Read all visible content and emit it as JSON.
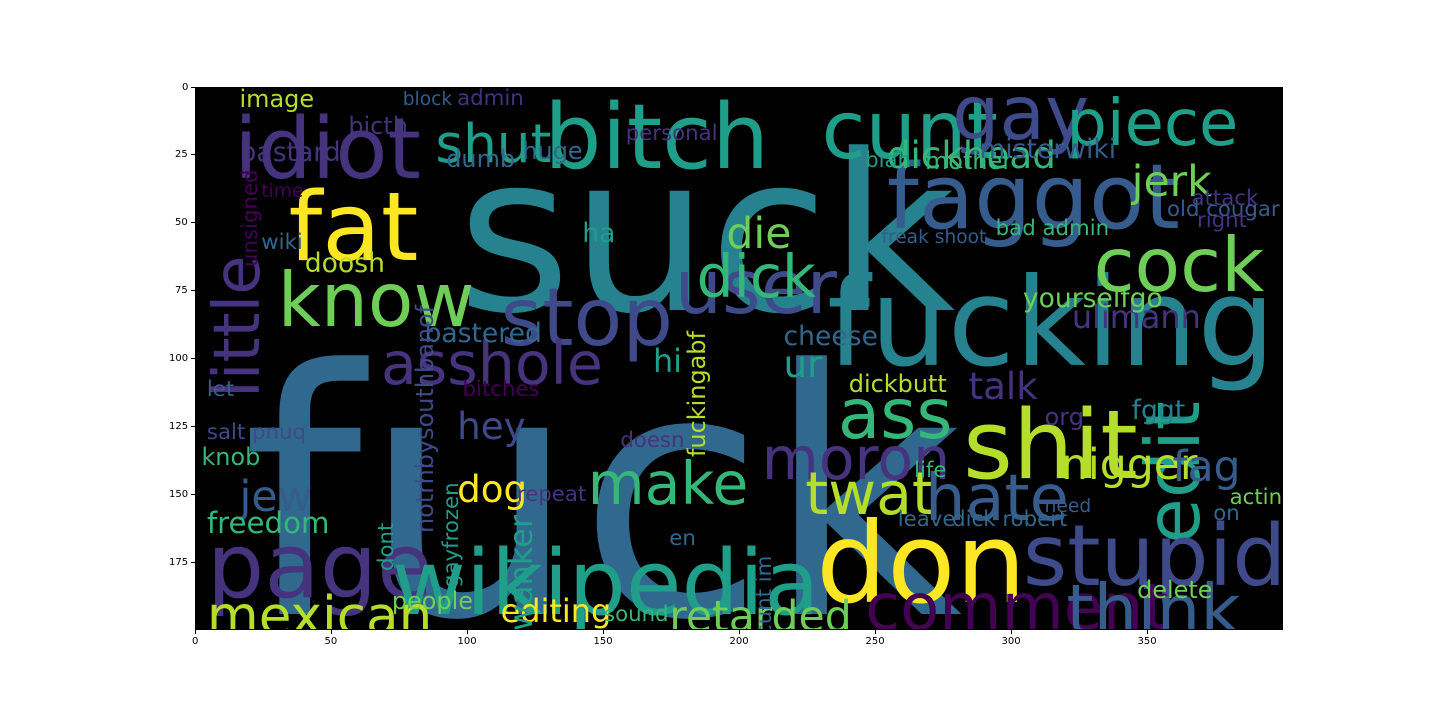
{
  "axes": {
    "x_ticks": [
      "0",
      "50",
      "100",
      "150",
      "200",
      "250",
      "300",
      "350"
    ],
    "y_ticks": [
      "0",
      "25",
      "50",
      "75",
      "100",
      "125",
      "150",
      "175"
    ],
    "x_tick_values": [
      0,
      50,
      100,
      150,
      200,
      250,
      300,
      350
    ],
    "y_tick_values": [
      0,
      25,
      50,
      75,
      100,
      125,
      150,
      175
    ],
    "xlim": [
      0,
      400
    ],
    "ylim": [
      0,
      200
    ]
  },
  "colors": {
    "background": "#000000",
    "purple": "#46337e",
    "deep_purple": "#440154",
    "indigo": "#3e4a89",
    "blue": "#365c8d",
    "steel": "#31688e",
    "teal": "#26828e",
    "cyan": "#1f9e89",
    "green": "#35b779",
    "lime": "#6ece58",
    "yellowgreen": "#b5de2b",
    "yellow": "#fde725"
  },
  "words": [
    {
      "text": "fuck",
      "x": 17,
      "y": 88,
      "size": 128,
      "color": "#31688e"
    },
    {
      "text": "suck",
      "x": 96,
      "y": 14,
      "size": 82,
      "color": "#26828e"
    },
    {
      "text": "fucking",
      "x": 232,
      "y": 64,
      "size": 46,
      "color": "#26828e"
    },
    {
      "text": "bitch",
      "x": 128,
      "y": 2,
      "size": 34,
      "color": "#1f9e89"
    },
    {
      "text": "faggot",
      "x": 254,
      "y": 24,
      "size": 34,
      "color": "#365c8d"
    },
    {
      "text": "cunt",
      "x": 230,
      "y": 1,
      "size": 30,
      "color": "#1f9e89"
    },
    {
      "text": "gay",
      "x": 278,
      "y": -4,
      "size": 28,
      "color": "#3e4a89"
    },
    {
      "text": "idiot",
      "x": 14,
      "y": 7,
      "size": 32,
      "color": "#46337e"
    },
    {
      "text": "fat",
      "x": 34,
      "y": 34,
      "size": 36,
      "color": "#fde725"
    },
    {
      "text": "know",
      "x": 30,
      "y": 65,
      "size": 28,
      "color": "#6ece58"
    },
    {
      "text": "stop",
      "x": 112,
      "y": 70,
      "size": 30,
      "color": "#3e4a89"
    },
    {
      "text": "user",
      "x": 176,
      "y": 60,
      "size": 28,
      "color": "#3e4a89"
    },
    {
      "text": "shut",
      "x": 88,
      "y": 11,
      "size": 20,
      "color": "#1f9e89"
    },
    {
      "text": "piece",
      "x": 320,
      "y": 2,
      "size": 24,
      "color": "#1f9e89"
    },
    {
      "text": "cock",
      "x": 330,
      "y": 52,
      "size": 28,
      "color": "#6ece58"
    },
    {
      "text": "dick",
      "x": 184,
      "y": 59,
      "size": 22,
      "color": "#35b779"
    },
    {
      "text": "little",
      "x": 4,
      "y": 40,
      "size": 24,
      "color": "#46337e",
      "rotate": -90,
      "rw": 74
    },
    {
      "text": "asshole",
      "x": 68,
      "y": 91,
      "size": 22,
      "color": "#46337e"
    },
    {
      "text": "ass",
      "x": 236,
      "y": 108,
      "size": 26,
      "color": "#35b779"
    },
    {
      "text": "shit",
      "x": 282,
      "y": 114,
      "size": 36,
      "color": "#b5de2b"
    },
    {
      "text": "moron",
      "x": 208,
      "y": 126,
      "size": 22,
      "color": "#46337e"
    },
    {
      "text": "make",
      "x": 144,
      "y": 135,
      "size": 22,
      "color": "#35b779"
    },
    {
      "text": "twat",
      "x": 224,
      "y": 139,
      "size": 22,
      "color": "#b5de2b"
    },
    {
      "text": "hate",
      "x": 268,
      "y": 140,
      "size": 24,
      "color": "#365c8d"
    },
    {
      "text": "edit",
      "x": 346,
      "y": 106,
      "size": 28,
      "color": "#1f9e89",
      "rotate": -90,
      "rw": 62
    },
    {
      "text": "page",
      "x": 4,
      "y": 160,
      "size": 34,
      "color": "#46337e"
    },
    {
      "text": "wikipedia",
      "x": 72,
      "y": 166,
      "size": 34,
      "color": "#1f9e89"
    },
    {
      "text": "don",
      "x": 228,
      "y": 155,
      "size": 42,
      "color": "#fde725"
    },
    {
      "text": "stupid",
      "x": 304,
      "y": 157,
      "size": 32,
      "color": "#3e4a89"
    },
    {
      "text": "mexican",
      "x": 4,
      "y": 185,
      "size": 20,
      "color": "#b5de2b"
    },
    {
      "text": "comment",
      "x": 246,
      "y": 180,
      "size": 24,
      "color": "#440154"
    },
    {
      "text": "think",
      "x": 320,
      "y": 180,
      "size": 26,
      "color": "#365c8d"
    },
    {
      "text": "retarded",
      "x": 174,
      "y": 187,
      "size": 16,
      "color": "#6ece58"
    },
    {
      "text": "editing",
      "x": 112,
      "y": 187,
      "size": 12,
      "color": "#fde725"
    },
    {
      "text": "dickhead",
      "x": 254,
      "y": 18,
      "size": 14,
      "color": "#35b779"
    },
    {
      "text": "jerk",
      "x": 344,
      "y": 27,
      "size": 16,
      "color": "#6ece58"
    },
    {
      "text": "die",
      "x": 195,
      "y": 46,
      "size": 16,
      "color": "#6ece58"
    },
    {
      "text": "talk",
      "x": 284,
      "y": 103,
      "size": 14,
      "color": "#46337e"
    },
    {
      "text": "nigger",
      "x": 318,
      "y": 131,
      "size": 16,
      "color": "#b5de2b"
    },
    {
      "text": "fag",
      "x": 359,
      "y": 132,
      "size": 16,
      "color": "#365c8d"
    },
    {
      "text": "jew",
      "x": 16,
      "y": 143,
      "size": 16,
      "color": "#365c8d"
    },
    {
      "text": "dog",
      "x": 96,
      "y": 141,
      "size": 14,
      "color": "#fde725"
    },
    {
      "text": "hey",
      "x": 96,
      "y": 118,
      "size": 14,
      "color": "#3e4a89"
    },
    {
      "text": "ur",
      "x": 216,
      "y": 95,
      "size": 14,
      "color": "#1f9e89"
    },
    {
      "text": "hi",
      "x": 168,
      "y": 95,
      "size": 12,
      "color": "#1f9e89"
    },
    {
      "text": "wanker",
      "x": 114,
      "y": 162,
      "size": 12,
      "color": "#1f9e89",
      "rotate": -90,
      "rw": 38
    },
    {
      "text": "ulimann",
      "x": 322,
      "y": 79,
      "size": 12,
      "color": "#46337e"
    },
    {
      "text": "yourselfgo",
      "x": 304,
      "y": 73,
      "size": 10,
      "color": "#6ece58"
    },
    {
      "text": "cheese",
      "x": 216,
      "y": 87,
      "size": 10,
      "color": "#31688e"
    },
    {
      "text": "dickbutt",
      "x": 240,
      "y": 105,
      "size": 9,
      "color": "#b5de2b"
    },
    {
      "text": "bastered",
      "x": 84,
      "y": 86,
      "size": 10,
      "color": "#31688e"
    },
    {
      "text": "doosh",
      "x": 40,
      "y": 60,
      "size": 10,
      "color": "#b5de2b"
    },
    {
      "text": "freedom",
      "x": 4,
      "y": 155,
      "size": 11,
      "color": "#35b779"
    },
    {
      "text": "knob",
      "x": 2,
      "y": 132,
      "size": 9,
      "color": "#35b779"
    },
    {
      "text": "fuckingabf",
      "x": 180,
      "y": 98,
      "size": 9,
      "color": "#b5de2b",
      "rotate": -90,
      "rw": 38
    },
    {
      "text": "notrhbysouthbanof",
      "x": 80,
      "y": 94,
      "size": 9,
      "color": "#3e4a89",
      "rotate": -90,
      "rw": 70
    },
    {
      "text": "gayfrozen",
      "x": 90,
      "y": 150,
      "size": 8,
      "color": "#1f9e89",
      "rotate": -90,
      "rw": 34
    },
    {
      "text": "dont",
      "x": 66,
      "y": 162,
      "size": 8,
      "color": "#1f9e89",
      "rotate": -90,
      "rw": 16
    },
    {
      "text": "huge",
      "x": 120,
      "y": 19,
      "size": 9,
      "color": "#31688e"
    },
    {
      "text": "dumb",
      "x": 92,
      "y": 22,
      "size": 9,
      "color": "#31688e"
    },
    {
      "text": "bastard",
      "x": 16,
      "y": 19,
      "size": 10,
      "color": "#46337e"
    },
    {
      "text": "bicth",
      "x": 56,
      "y": 10,
      "size": 9,
      "color": "#46337e"
    },
    {
      "text": "image",
      "x": 16,
      "y": 0,
      "size": 9,
      "color": "#b5de2b"
    },
    {
      "text": "mother",
      "x": 268,
      "y": 23,
      "size": 9,
      "color": "#35b779"
    },
    {
      "text": "misterwiki",
      "x": 288,
      "y": 18,
      "size": 10,
      "color": "#365c8d"
    },
    {
      "text": "blah",
      "x": 246,
      "y": 23,
      "size": 8,
      "color": "#1f9e89"
    },
    {
      "text": "ha",
      "x": 142,
      "y": 49,
      "size": 10,
      "color": "#1f9e89"
    },
    {
      "text": "wiki",
      "x": 24,
      "y": 53,
      "size": 8,
      "color": "#31688e"
    },
    {
      "text": "people",
      "x": 72,
      "y": 185,
      "size": 9,
      "color": "#6ece58"
    },
    {
      "text": "delete",
      "x": 346,
      "y": 181,
      "size": 9,
      "color": "#6ece58"
    },
    {
      "text": "fggt",
      "x": 344,
      "y": 114,
      "size": 10,
      "color": "#26828e"
    },
    {
      "text": "org",
      "x": 312,
      "y": 117,
      "size": 9,
      "color": "#46337e"
    },
    {
      "text": "life",
      "x": 264,
      "y": 137,
      "size": 8,
      "color": "#35b779"
    },
    {
      "text": "salt pnuq",
      "x": 4,
      "y": 123,
      "size": 8,
      "color": "#3e4a89"
    },
    {
      "text": "repeat",
      "x": 118,
      "y": 146,
      "size": 8,
      "color": "#46337e"
    },
    {
      "text": "doesn",
      "x": 156,
      "y": 126,
      "size": 8,
      "color": "#46337e"
    },
    {
      "text": "bitches",
      "x": 98,
      "y": 107,
      "size": 8,
      "color": "#440154"
    },
    {
      "text": "let",
      "x": 4,
      "y": 107,
      "size": 8,
      "color": "#365c8d"
    },
    {
      "text": "acting",
      "x": 380,
      "y": 147,
      "size": 8,
      "color": "#6ece58"
    },
    {
      "text": "admin",
      "x": 96,
      "y": 0,
      "size": 8,
      "color": "#46337e"
    },
    {
      "text": "block",
      "x": 76,
      "y": 1,
      "size": 7,
      "color": "#365c8d"
    },
    {
      "text": "attack",
      "x": 366,
      "y": 37,
      "size": 8,
      "color": "#46337e"
    },
    {
      "text": "old cougar",
      "x": 357,
      "y": 41,
      "size": 8,
      "color": "#365c8d"
    },
    {
      "text": "bad admin",
      "x": 294,
      "y": 48,
      "size": 8,
      "color": "#35b779"
    },
    {
      "text": "right",
      "x": 368,
      "y": 45,
      "size": 8,
      "color": "#46337e"
    },
    {
      "text": "cunt im",
      "x": 205,
      "y": 176,
      "size": 8,
      "color": "#31688e",
      "rotate": -90,
      "rw": 26
    },
    {
      "text": "leave",
      "x": 258,
      "y": 155,
      "size": 8,
      "color": "#31688e"
    },
    {
      "text": "dick robert",
      "x": 278,
      "y": 155,
      "size": 8,
      "color": "#31688e"
    },
    {
      "text": "need",
      "x": 312,
      "y": 151,
      "size": 7,
      "color": "#365c8d"
    },
    {
      "text": "sound",
      "x": 150,
      "y": 190,
      "size": 8,
      "color": "#35b779"
    },
    {
      "text": "en",
      "x": 174,
      "y": 162,
      "size": 8,
      "color": "#31688e"
    },
    {
      "text": "on",
      "x": 374,
      "y": 153,
      "size": 8,
      "color": "#31688e"
    },
    {
      "text": "personal",
      "x": 158,
      "y": 13,
      "size": 8,
      "color": "#46337e"
    },
    {
      "text": "freak shoot",
      "x": 252,
      "y": 52,
      "size": 7,
      "color": "#365c8d"
    },
    {
      "text": "time",
      "x": 24,
      "y": 35,
      "size": 7,
      "color": "#440154"
    },
    {
      "text": "unsigned",
      "x": 16,
      "y": 38,
      "size": 8,
      "color": "#440154",
      "rotate": -90,
      "rw": 28
    }
  ]
}
